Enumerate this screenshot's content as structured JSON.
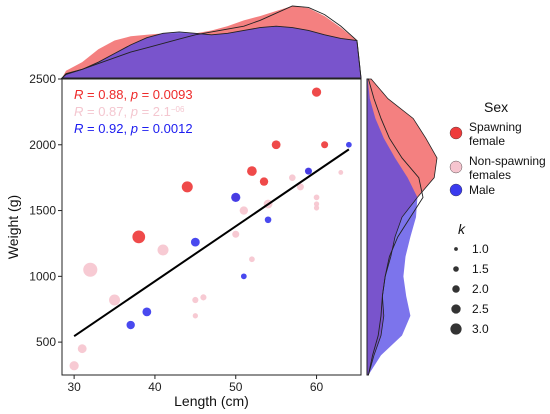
{
  "chart_data": {
    "type": "scatter",
    "xlabel": "Length (cm)",
    "ylabel": "Weight (g)",
    "xlim": [
      28.5,
      65.5
    ],
    "ylim": [
      250,
      2500
    ],
    "xticks": [
      30,
      40,
      50,
      60
    ],
    "yticks": [
      500,
      1000,
      1500,
      2000,
      2500
    ],
    "stats": [
      {
        "parts": [
          {
            "t": "R",
            "i": true
          },
          {
            "t": " = 0.88, "
          },
          {
            "t": "p",
            "i": true
          },
          {
            "t": " = 0.0093"
          }
        ],
        "color": "#ee2a2a"
      },
      {
        "parts": [
          {
            "t": "R",
            "i": true
          },
          {
            "t": " = 0.87, "
          },
          {
            "t": "p",
            "i": true
          },
          {
            "t": " = 2.1"
          },
          {
            "t": "−06",
            "sup": true
          }
        ],
        "color": "#f4c7d0"
      },
      {
        "parts": [
          {
            "t": "R",
            "i": true
          },
          {
            "t": " = 0.92, "
          },
          {
            "t": "p",
            "i": true
          },
          {
            "t": " = 0.0012"
          }
        ],
        "color": "#1c1cf0"
      }
    ],
    "regression_line": {
      "x": [
        30,
        64
      ],
      "y": [
        545,
        1965
      ],
      "color": "#000000"
    },
    "series": [
      {
        "name": "Spawning\nfemale",
        "color": "#ee3b3b",
        "points": [
          [
            38,
            1300,
            2.9
          ],
          [
            44,
            1680,
            2.5
          ],
          [
            52,
            1800,
            2.2
          ],
          [
            53.5,
            1720,
            1.9
          ],
          [
            55,
            2000,
            2.0
          ],
          [
            60,
            2400,
            2.1
          ],
          [
            61,
            2000,
            1.6
          ],
          [
            50,
            1600,
            1.8
          ],
          [
            59,
            1800,
            1.4
          ]
        ]
      },
      {
        "name": "Non-spawning\nfemales",
        "color": "#f6c5cf",
        "points": [
          [
            30,
            320,
            2.1
          ],
          [
            31,
            450,
            2.0
          ],
          [
            32,
            1050,
            3.2
          ],
          [
            35,
            820,
            2.5
          ],
          [
            41,
            1200,
            2.5
          ],
          [
            45,
            820,
            1.4
          ],
          [
            45,
            700,
            1.2
          ],
          [
            46,
            840,
            1.4
          ],
          [
            50,
            1320,
            1.6
          ],
          [
            51,
            1500,
            1.9
          ],
          [
            52,
            1130,
            1.3
          ],
          [
            54,
            1550,
            2.0
          ],
          [
            57,
            1750,
            1.5
          ],
          [
            58,
            1680,
            1.6
          ],
          [
            60,
            1600,
            1.3
          ],
          [
            60,
            1550,
            1.2
          ],
          [
            60,
            1520,
            1.2
          ],
          [
            63,
            1790,
            1.1
          ]
        ]
      },
      {
        "name": "Male",
        "color": "#3a3aee",
        "points": [
          [
            37,
            630,
            1.9
          ],
          [
            39,
            730,
            2.0
          ],
          [
            45,
            1260,
            2.0
          ],
          [
            50,
            1600,
            2.1
          ],
          [
            51,
            1000,
            1.3
          ],
          [
            54,
            1430,
            1.5
          ],
          [
            59,
            1800,
            1.6
          ],
          [
            64,
            2000,
            1.3
          ]
        ]
      }
    ],
    "density_top": {
      "x": [
        29,
        31,
        33,
        35,
        37,
        39,
        41,
        43,
        45,
        47,
        49,
        51,
        53,
        55,
        57,
        59,
        61,
        63,
        65
      ],
      "female": [
        0.1,
        0.22,
        0.4,
        0.52,
        0.58,
        0.6,
        0.62,
        0.62,
        0.62,
        0.66,
        0.72,
        0.8,
        0.86,
        0.93,
        1.0,
        0.97,
        0.86,
        0.7,
        0.52
      ],
      "female_outline": [
        0.06,
        0.12,
        0.2,
        0.28,
        0.36,
        0.42,
        0.48,
        0.54,
        0.6,
        0.64,
        0.68,
        0.72,
        0.8,
        0.9,
        1.0,
        0.98,
        0.88,
        0.72,
        0.52
      ],
      "male": [
        0.05,
        0.12,
        0.22,
        0.34,
        0.46,
        0.56,
        0.62,
        0.64,
        0.62,
        0.6,
        0.62,
        0.66,
        0.7,
        0.72,
        0.7,
        0.66,
        0.6,
        0.55,
        0.52
      ]
    },
    "density_right": {
      "y": [
        250,
        400,
        550,
        700,
        850,
        1000,
        1150,
        1300,
        1450,
        1600,
        1750,
        1900,
        2050,
        2200,
        2350,
        2500
      ],
      "female": [
        0.02,
        0.1,
        0.2,
        0.24,
        0.22,
        0.26,
        0.34,
        0.4,
        0.5,
        0.72,
        0.96,
        1.0,
        0.84,
        0.66,
        0.3,
        0.06
      ],
      "male": [
        0.02,
        0.2,
        0.5,
        0.62,
        0.56,
        0.52,
        0.55,
        0.62,
        0.7,
        0.72,
        0.58,
        0.4,
        0.24,
        0.12,
        0.04,
        0.01
      ],
      "outline": [
        0.02,
        0.08,
        0.16,
        0.2,
        0.22,
        0.26,
        0.32,
        0.44,
        0.62,
        0.8,
        0.74,
        0.5,
        0.32,
        0.2,
        0.1,
        0.02
      ]
    },
    "legend": {
      "title": "Sex",
      "k_title": "k",
      "k_values": [
        1.0,
        1.5,
        2.0,
        2.5,
        3.0
      ],
      "k_labels": [
        "1.0",
        "1.5",
        "2.0",
        "2.5",
        "3.0"
      ]
    }
  }
}
